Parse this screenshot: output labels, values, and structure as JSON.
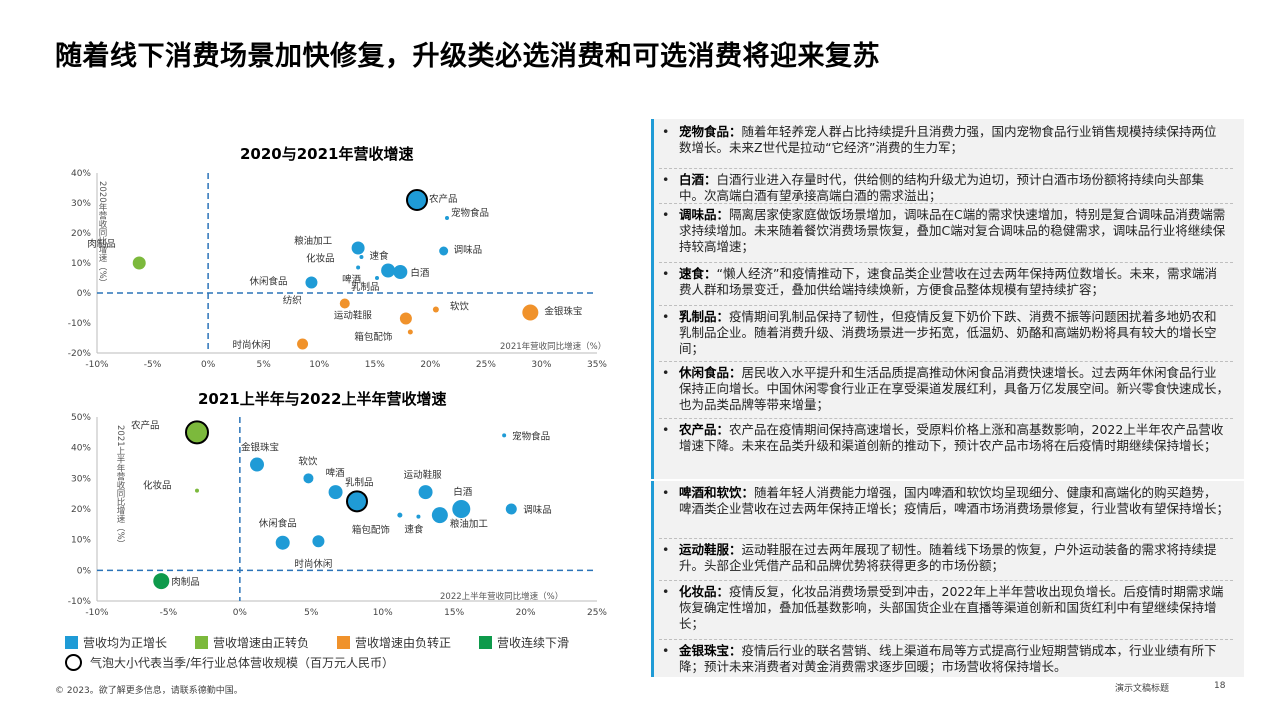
{
  "title": "随着线下消费场景加快修复，升级类必选消费和可选消费将迎来复苏",
  "chart_data": [
    {
      "type": "scatter",
      "title": "2020与2021年营收增速",
      "xlabel": "2021年营收同比增速（%）",
      "ylabel": "2020年营收同比增速（%）",
      "xlim": [
        -10,
        35
      ],
      "ylim": [
        -20,
        40
      ],
      "xticks": [
        "-10%",
        "-5%",
        "0%",
        "5%",
        "10%",
        "15%",
        "20%",
        "25%",
        "30%",
        "35%"
      ],
      "yticks": [
        "40%",
        "30%",
        "20%",
        "10%",
        "0%",
        "-10%",
        "-20%"
      ],
      "points": [
        {
          "label": "农产品",
          "x": 18.8,
          "y": 31,
          "size": 20,
          "color": "#1f9bd6"
        },
        {
          "label": "宠物食品",
          "x": 21.5,
          "y": 25,
          "size": 2,
          "color": "#1f9bd6"
        },
        {
          "label": "调味品",
          "x": 21.2,
          "y": 14,
          "size": 9,
          "color": "#1f9bd6"
        },
        {
          "label": "粮油加工",
          "x": 13.5,
          "y": 15,
          "size": 13,
          "color": "#1f9bd6"
        },
        {
          "label": "速食",
          "x": 13.8,
          "y": 12,
          "size": 4,
          "color": "#1f9bd6"
        },
        {
          "label": "化妆品",
          "x": 13.5,
          "y": 8.5,
          "size": 3,
          "color": "#1f9bd6"
        },
        {
          "label": "啤酒",
          "x": 16.2,
          "y": 7.5,
          "size": 14,
          "color": "#1f9bd6"
        },
        {
          "label": "白酒",
          "x": 17.3,
          "y": 7,
          "size": 14,
          "color": "#1f9bd6"
        },
        {
          "label": "乳制品",
          "x": 15.2,
          "y": 5,
          "size": 4,
          "color": "#1f9bd6"
        },
        {
          "label": "休闲食品",
          "x": 9.3,
          "y": 3.5,
          "size": 12,
          "color": "#1f9bd6"
        },
        {
          "label": "肉制品",
          "x": -6.2,
          "y": 10,
          "size": 13,
          "color": "#7cb93c"
        },
        {
          "label": "时尚休闲",
          "x": 8.5,
          "y": -17,
          "size": 11,
          "color": "#f0922b"
        },
        {
          "label": "运动鞋服",
          "x": 17.8,
          "y": -8.5,
          "size": 12,
          "color": "#f0922b"
        },
        {
          "label": "纺织",
          "x": 12.3,
          "y": -3.5,
          "size": 10,
          "color": "#f0922b"
        },
        {
          "label": "软饮",
          "x": 20.5,
          "y": -5.5,
          "size": 6,
          "color": "#f0922b"
        },
        {
          "label": "金银珠宝",
          "x": 29,
          "y": -6.5,
          "size": 16,
          "color": "#f0922b"
        },
        {
          "label": "箱包配饰",
          "x": 18.2,
          "y": -13,
          "size": 5,
          "color": "#f0922b"
        }
      ],
      "grid": false
    },
    {
      "type": "scatter",
      "title": "2021上半年与2022上半年营收增速",
      "xlabel": "2022上半年营收同比增速（%）",
      "ylabel": "2021上半年营收同比增速（%）",
      "xlim": [
        -10,
        25
      ],
      "ylim": [
        -10,
        50
      ],
      "xticks": [
        "-10%",
        "-5%",
        "0%",
        "5%",
        "10%",
        "15%",
        "20%",
        "25%"
      ],
      "yticks": [
        "50%",
        "40%",
        "30%",
        "20%",
        "10%",
        "0%",
        "-10%"
      ],
      "points": [
        {
          "label": "农产品",
          "x": -3,
          "y": 45,
          "size": 22,
          "color": "#7cb93c"
        },
        {
          "label": "化妆品",
          "x": -3,
          "y": 26,
          "size": 3,
          "color": "#7cb93c"
        },
        {
          "label": "宠物食品",
          "x": 18.5,
          "y": 44,
          "size": 2,
          "color": "#1f9bd6"
        },
        {
          "label": "金银珠宝",
          "x": 1.2,
          "y": 34.5,
          "size": 14,
          "color": "#1f9bd6"
        },
        {
          "label": "软饮",
          "x": 4.8,
          "y": 30,
          "size": 10,
          "color": "#1f9bd6"
        },
        {
          "label": "啤酒",
          "x": 6.7,
          "y": 25.5,
          "size": 14,
          "color": "#1f9bd6"
        },
        {
          "label": "乳制品",
          "x": 8.2,
          "y": 22.5,
          "size": 20,
          "color": "#1f9bd6"
        },
        {
          "label": "运动鞋服",
          "x": 13,
          "y": 25.5,
          "size": 14,
          "color": "#1f9bd6"
        },
        {
          "label": "白酒",
          "x": 15.5,
          "y": 20,
          "size": 18,
          "color": "#1f9bd6"
        },
        {
          "label": "调味品",
          "x": 19,
          "y": 20,
          "size": 11,
          "color": "#1f9bd6"
        },
        {
          "label": "粮油加工",
          "x": 14,
          "y": 18,
          "size": 16,
          "color": "#1f9bd6"
        },
        {
          "label": "箱包配饰",
          "x": 11.2,
          "y": 18,
          "size": 5,
          "color": "#1f9bd6"
        },
        {
          "label": "速食",
          "x": 12.5,
          "y": 17.5,
          "size": 4,
          "color": "#1f9bd6"
        },
        {
          "label": "休闲食品",
          "x": 3,
          "y": 9,
          "size": 14,
          "color": "#1f9bd6"
        },
        {
          "label": "时尚休闲",
          "x": 5.5,
          "y": 9.5,
          "size": 12,
          "color": "#1f9bd6"
        },
        {
          "label": "肉制品",
          "x": -5.5,
          "y": -3.5,
          "size": 16,
          "color": "#0e9a4b"
        }
      ],
      "grid": false
    }
  ],
  "legend": {
    "items": [
      {
        "label": "营收均为正增长",
        "color": "#1f9bd6"
      },
      {
        "label": "营收增速由正转负",
        "color": "#7cb93c"
      },
      {
        "label": "营收增速由负转正",
        "color": "#f0922b"
      },
      {
        "label": "营收连续下滑",
        "color": "#0e9a4b"
      }
    ],
    "size_note": "气泡大小代表当季/年行业总体营收规模（百万元人民币）"
  },
  "bullets": [
    {
      "head": "宠物食品：",
      "text": "随着年轻养宠人群占比持续提升且消费力强，国内宠物食品行业销售规模持续保持两位数增长。未来Z世代是拉动“它经济”消费的生力军；"
    },
    {
      "head": "白酒：",
      "text": "白酒行业进入存量时代，供给侧的结构升级尤为迫切，预计白酒市场份额将持续向头部集中。次高端白酒有望承接高端白酒的需求溢出；"
    },
    {
      "head": "调味品：",
      "text": "隔离居家使家庭做饭场景增加，调味品在C端的需求快速增加，特别是复合调味品消费端需求持续增加。未来随着餐饮消费场景恢复，叠加C端对复合调味品的稳健需求，调味品行业将继续保持较高增速；"
    },
    {
      "head": "速食：",
      "text": "“懒人经济”和疫情推动下，速食品类企业营收在过去两年保持两位数增长。未来，需求端消费人群和场景变迁，叠加供给端持续焕新，方便食品整体规模有望持续扩容；"
    },
    {
      "head": "乳制品：",
      "text": "疫情期间乳制品保持了韧性，但疫情反复下奶价下跌、消费不振等问题困扰着多地奶农和乳制品企业。随着消费升级、消费场景进一步拓宽，低温奶、奶酪和高端奶粉将具有较大的增长空间；"
    },
    {
      "head": "休闲食品：",
      "text": "居民收入水平提升和生活品质提高推动休闲食品消费快速增长。过去两年休闲食品行业保持正向增长。中国休闲零食行业正在享受渠道发展红利，具备万亿发展空间。新兴零食快速成长，也为品类品牌等带来增量；"
    },
    {
      "head": "农产品：",
      "text": "农产品在疫情期间保持高速增长，受原料价格上涨和高基数影响，2022上半年农产品营收增速下降。未来在品类升级和渠道创新的推动下，预计农产品市场将在后疫情时期继续保持增长；"
    },
    {
      "head": "啤酒和软饮：",
      "text": "随着年轻人消费能力增强，国内啤酒和软饮均呈现细分、健康和高端化的购买趋势，啤酒类企业营收在过去两年保持正增长；疫情后，啤酒市场消费场景修复，行业营收有望保持增长；"
    },
    {
      "head": "运动鞋服：",
      "text": "运动鞋服在过去两年展现了韧性。随着线下场景的恢复，户外运动装备的需求将持续提升。头部企业凭借产品和品牌优势将获得更多的市场份额；"
    },
    {
      "head": "化妆品：",
      "text": "疫情反复，化妆品消费场景受到冲击，2022年上半年营收出现负增长。后疫情时期需求端恢复确定性增加，叠加低基数影响，头部国货企业在直播等渠道创新和国货红利中有望继续保持增长；"
    },
    {
      "head": "金银珠宝：",
      "text": "疫情后行业的联名营销、线上渠道布局等方式提高行业短期营销成本，行业业绩有所下降；预计未来消费者对黄金消费需求逐步回暖；市场营收将保持增长。"
    }
  ],
  "footer": {
    "copyright": "© 2023。欲了解更多信息，请联系德勤中国。",
    "section": "演示文稿标题",
    "page": "18"
  }
}
